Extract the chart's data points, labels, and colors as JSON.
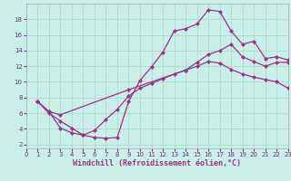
{
  "background_color": "#caeee8",
  "grid_color": "#aaddcc",
  "line_color": "#993388",
  "xlim": [
    0,
    23
  ],
  "ylim": [
    1.5,
    20
  ],
  "xticks": [
    0,
    1,
    2,
    3,
    4,
    5,
    6,
    7,
    8,
    9,
    10,
    11,
    12,
    13,
    14,
    15,
    16,
    17,
    18,
    19,
    20,
    21,
    22,
    23
  ],
  "yticks": [
    2,
    4,
    6,
    8,
    10,
    12,
    14,
    16,
    18
  ],
  "xlabel": "Windchill (Refroidissement éolien,°C)",
  "curve1_x": [
    1,
    2,
    3,
    4,
    5,
    6,
    7,
    8,
    9,
    10,
    11,
    12,
    13,
    14,
    15,
    16,
    17,
    18,
    19,
    20,
    21,
    22,
    23
  ],
  "curve1_y": [
    7.5,
    6.0,
    5.0,
    4.1,
    3.2,
    2.9,
    2.8,
    2.9,
    7.5,
    10.2,
    11.9,
    13.8,
    16.5,
    16.8,
    17.4,
    19.2,
    19.0,
    16.5,
    14.8,
    15.2,
    13.0,
    13.2,
    12.8
  ],
  "curve2_x": [
    1,
    2,
    3,
    9,
    14,
    15,
    16,
    17,
    18,
    19,
    20,
    21,
    22,
    23
  ],
  "curve2_y": [
    7.5,
    6.2,
    5.8,
    9.0,
    11.5,
    12.5,
    13.5,
    14.0,
    14.8,
    13.2,
    12.6,
    12.0,
    12.5,
    12.5
  ],
  "curve3_x": [
    1,
    2,
    3,
    4,
    5,
    6,
    7,
    8,
    9,
    10,
    11,
    12,
    13,
    14,
    15,
    16,
    17,
    18,
    19,
    20,
    21,
    22,
    23
  ],
  "curve3_y": [
    7.5,
    6.2,
    4.1,
    3.5,
    3.2,
    3.8,
    5.2,
    6.5,
    8.2,
    9.2,
    9.8,
    10.4,
    11.0,
    11.5,
    12.0,
    12.6,
    12.4,
    11.6,
    11.0,
    10.6,
    10.3,
    10.0,
    9.2
  ],
  "markersize": 2.5,
  "linewidth": 0.9,
  "tick_fontsize": 5,
  "xlabel_fontsize": 6
}
